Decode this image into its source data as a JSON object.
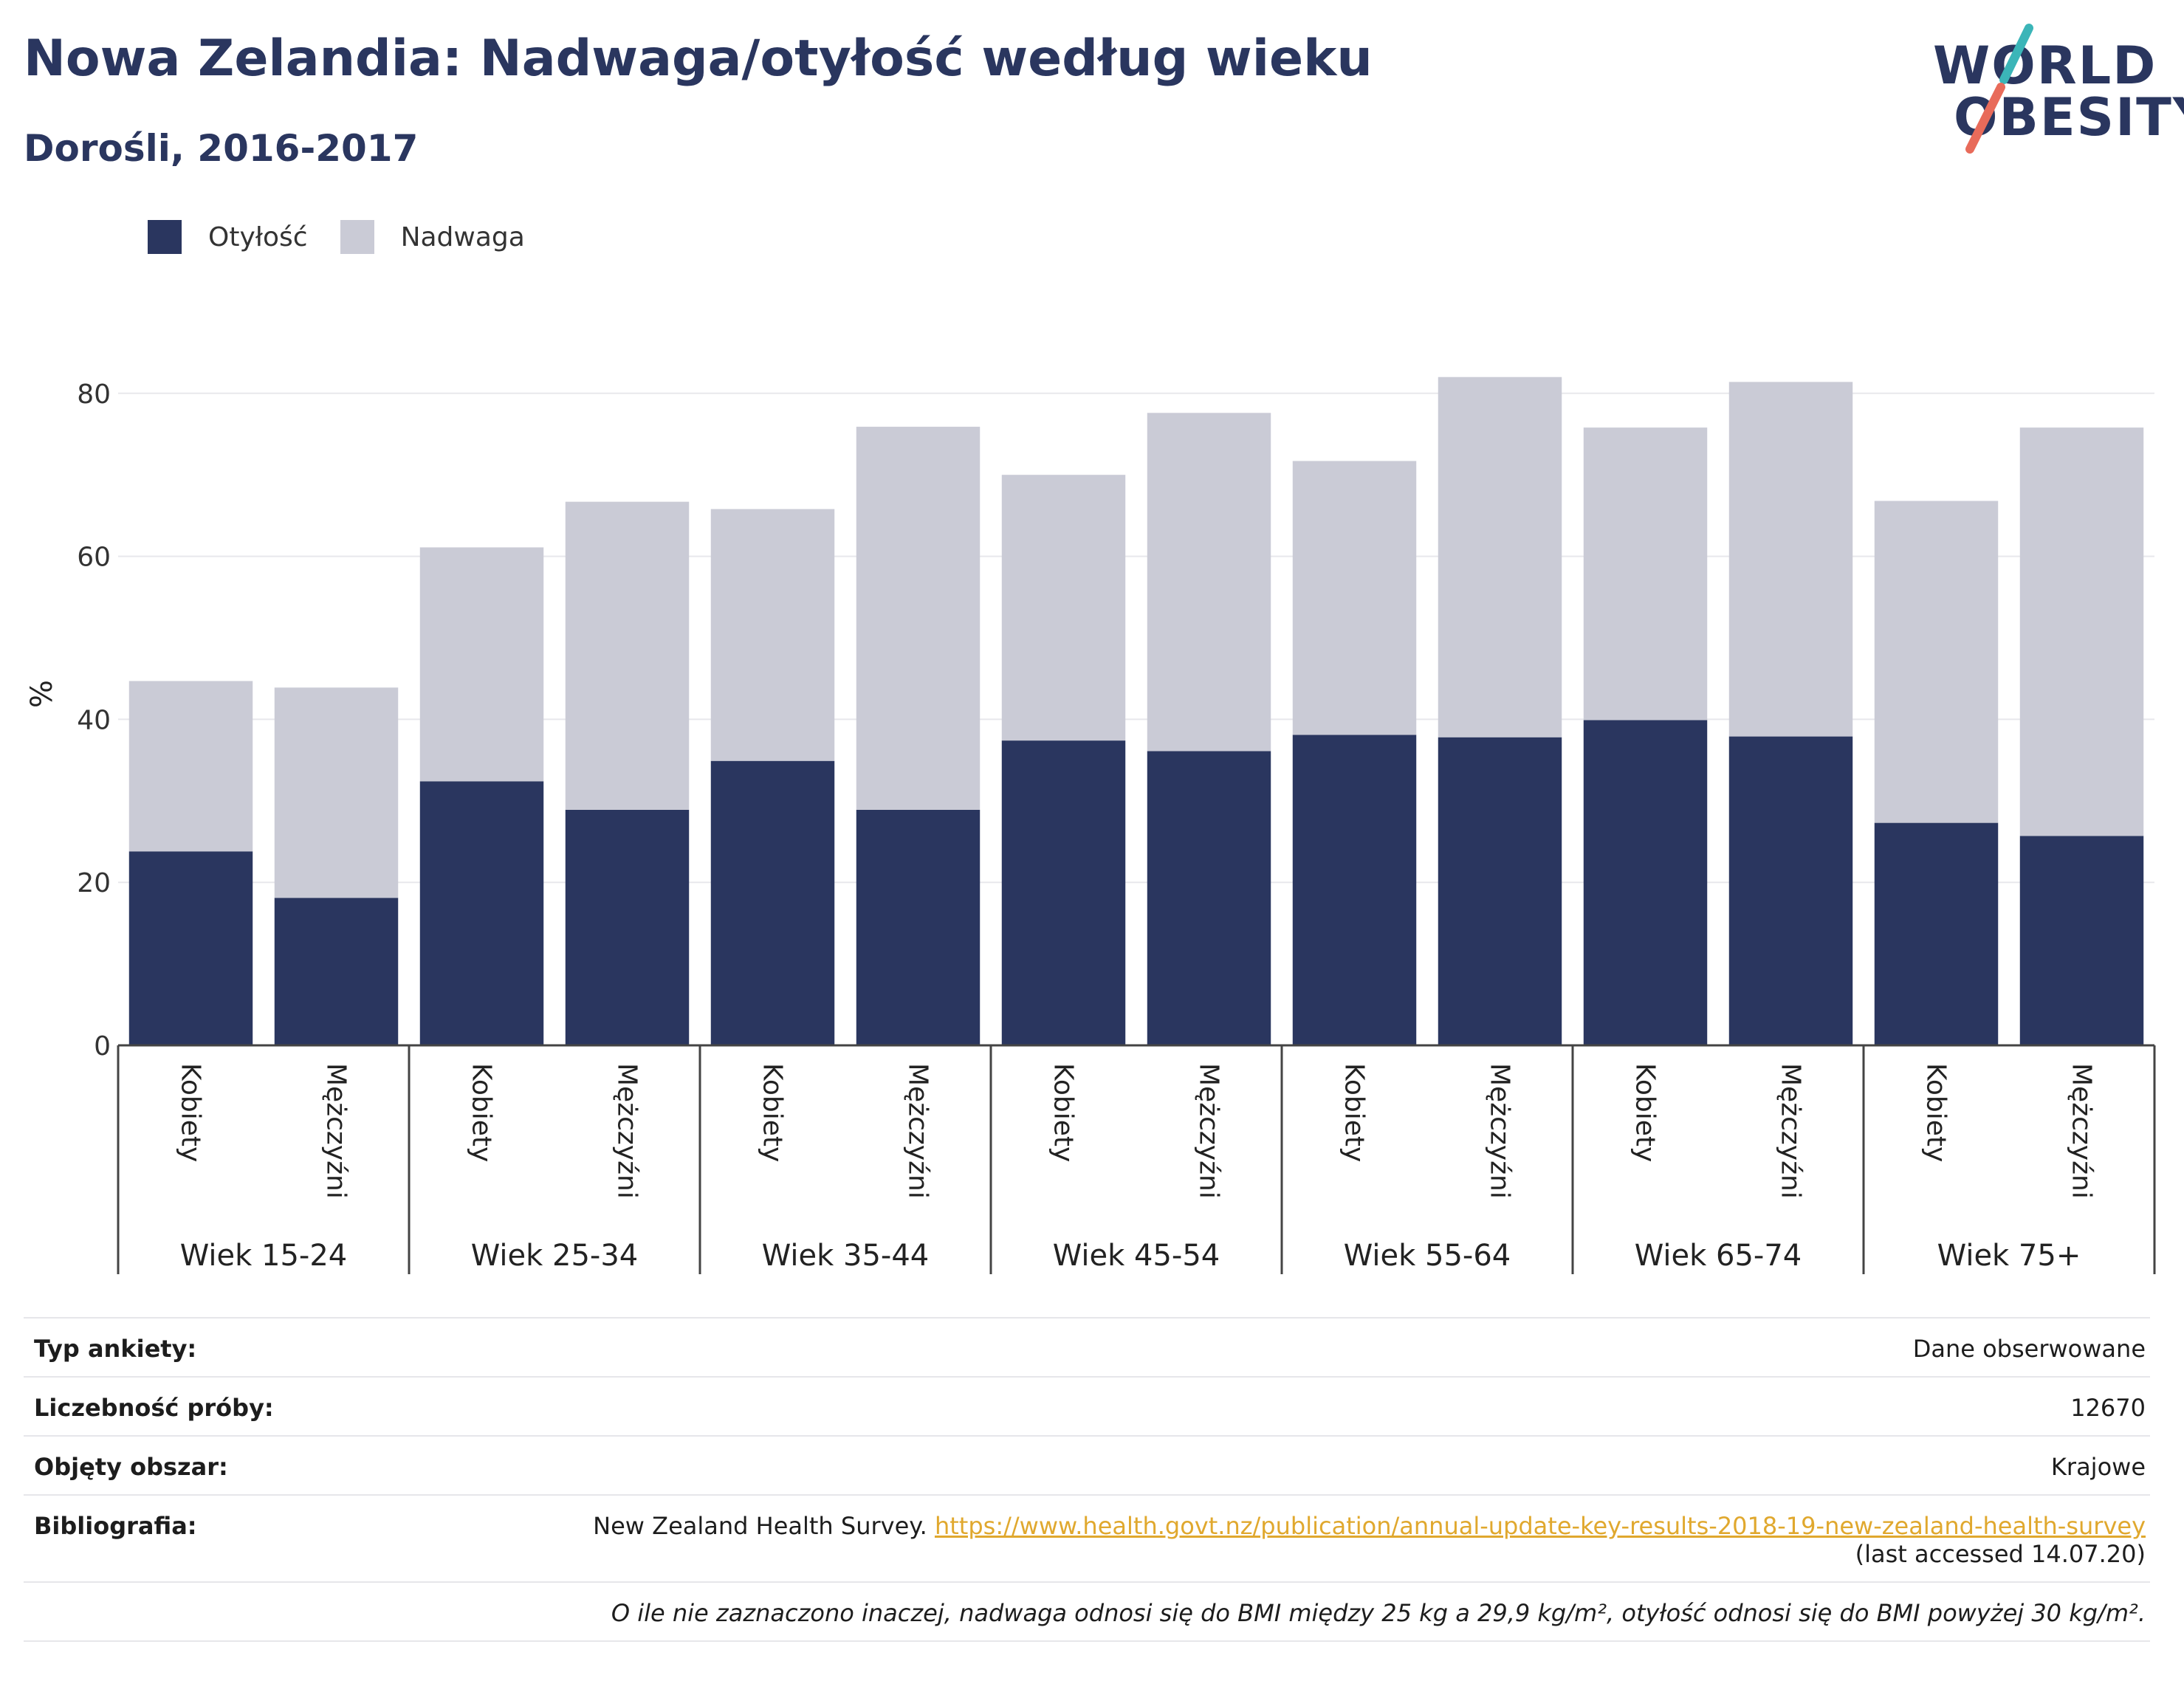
{
  "header": {
    "title": "Nowa Zelandia: Nadwaga/otyłość według wieku",
    "subtitle": "Dorośli, 2016-2017"
  },
  "logo": {
    "line1": "WORLD",
    "line2": "OBESITY",
    "colors": {
      "text": "#2a365f",
      "slash_top": "#3bb5b8",
      "slash_bottom": "#e86b5a"
    }
  },
  "legend": {
    "items": [
      {
        "label": "Otyłość",
        "color": "#2a365f"
      },
      {
        "label": "Nadwaga",
        "color": "#cacbd6"
      }
    ]
  },
  "chart_data": {
    "type": "bar",
    "stacked": true,
    "ylabel": "%",
    "ylim": [
      0,
      90
    ],
    "yticks": [
      0,
      20,
      40,
      60,
      80
    ],
    "grid": true,
    "legend_position": "top-left",
    "groups": [
      "Wiek 15-24",
      "Wiek 25-34",
      "Wiek 35-44",
      "Wiek 45-54",
      "Wiek 55-64",
      "Wiek 65-74",
      "Wiek 75+"
    ],
    "subcategories": [
      "Kobiety",
      "Mężczyźni"
    ],
    "series": [
      {
        "name": "Otyłość",
        "color": "#2a365f",
        "values": [
          23.8,
          18.1,
          32.4,
          28.9,
          34.9,
          28.9,
          37.4,
          36.1,
          38.1,
          37.8,
          39.9,
          37.9,
          27.3,
          25.7
        ]
      },
      {
        "name": "Nadwaga",
        "color": "#cacbd6",
        "values": [
          20.9,
          25.8,
          28.7,
          37.8,
          30.9,
          47.0,
          32.6,
          41.5,
          33.6,
          44.2,
          35.9,
          43.5,
          39.5,
          50.1
        ]
      }
    ]
  },
  "info": {
    "rows": [
      {
        "key": "Typ ankiety:",
        "value": "Dane obserwowane"
      },
      {
        "key": "Liczebność próby:",
        "value": "12670"
      },
      {
        "key": "Objęty obszar:",
        "value": "Krajowe"
      }
    ],
    "bibliography": {
      "key": "Bibliografia:",
      "source": "New Zealand Health Survey.",
      "link": "https://www.health.govt.nz/publication/annual-update-key-results-2018-19-new-zealand-health-survey",
      "accessed": "(last accessed 14.07.20)"
    },
    "note": "O ile nie zaznaczono inaczej, nadwaga odnosi się do BMI między 25 kg a 29,9 kg/m², otyłość odnosi się do BMI powyżej 30 kg/m²."
  }
}
